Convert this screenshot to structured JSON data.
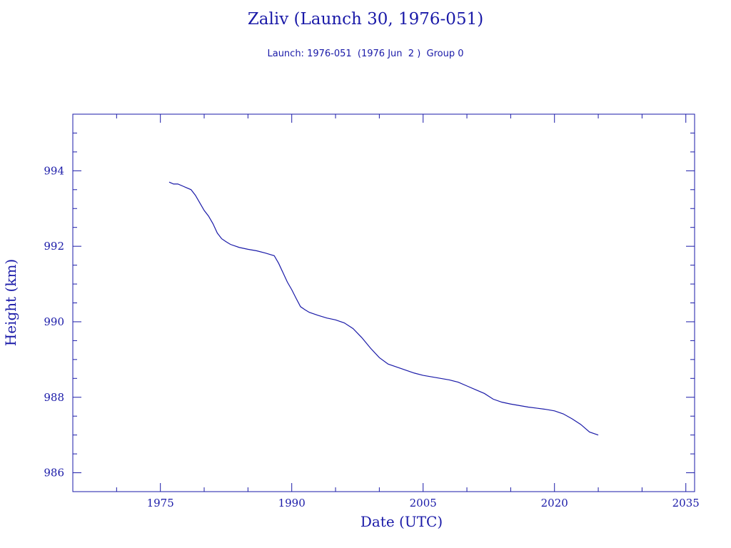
{
  "colors": {
    "axis": "#1a1aa8",
    "series": "#1a1aa8",
    "background": "#ffffff"
  },
  "chart_data": {
    "type": "line",
    "title": "Zaliv (Launch 30, 1976-051)",
    "subtitle": "Launch: 1976-051  (1976 Jun  2 )  Group 0",
    "xlabel": "Date (UTC)",
    "ylabel": "Height (km)",
    "xlim": [
      1965,
      2036
    ],
    "ylim": [
      985.5,
      995.5
    ],
    "x_ticks": [
      1975,
      1990,
      2005,
      2020,
      2035
    ],
    "y_ticks": [
      986,
      988,
      990,
      992,
      994
    ],
    "grid": false,
    "series": [
      {
        "x": [
          1976.0,
          1976.5,
          1977.0,
          1977.5,
          1978.0,
          1978.5,
          1979.0,
          1979.5,
          1980.0,
          1980.5,
          1981.0,
          1981.5,
          1982.0,
          1982.5,
          1983.0,
          1984.0,
          1985.0,
          1986.0,
          1987.0,
          1988.0,
          1988.5,
          1989.0,
          1989.5,
          1990.0,
          1990.5,
          1991.0,
          1991.5,
          1992.0,
          1993.0,
          1994.0,
          1995.0,
          1996.0,
          1997.0,
          1998.0,
          1999.0,
          2000.0,
          2001.0,
          2002.0,
          2002.5,
          2003.0,
          2003.5,
          2004.0,
          2005.0,
          2006.0,
          2007.0,
          2008.0,
          2009.0,
          2010.0,
          2011.0,
          2012.0,
          2013.0,
          2014.0,
          2015.0,
          2016.0,
          2017.0,
          2018.0,
          2019.0,
          2020.0,
          2021.0,
          2022.0,
          2023.0,
          2024.0,
          2025.0
        ],
        "y": [
          993.7,
          993.65,
          993.65,
          993.6,
          993.55,
          993.5,
          993.35,
          993.15,
          992.95,
          992.8,
          992.6,
          992.35,
          992.2,
          992.12,
          992.05,
          991.97,
          991.92,
          991.88,
          991.82,
          991.75,
          991.55,
          991.3,
          991.05,
          990.85,
          990.62,
          990.4,
          990.32,
          990.25,
          990.17,
          990.1,
          990.05,
          989.97,
          989.82,
          989.58,
          989.3,
          989.05,
          988.88,
          988.8,
          988.76,
          988.72,
          988.68,
          988.64,
          988.58,
          988.54,
          988.5,
          988.46,
          988.4,
          988.3,
          988.2,
          988.1,
          987.95,
          987.87,
          987.82,
          987.78,
          987.74,
          987.71,
          987.68,
          987.64,
          987.56,
          987.43,
          987.28,
          987.08,
          987.0
        ]
      }
    ]
  }
}
